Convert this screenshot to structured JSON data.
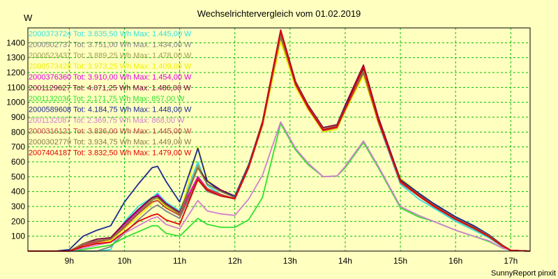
{
  "chart_data": {
    "type": "line",
    "title": "Wechselrichtervergleich vom 01.02.2019",
    "ylabel": "W",
    "xlabel": "",
    "footer": "SunnyReport pinxit",
    "x_ticks": [
      "9h",
      "10h",
      "11h",
      "12h",
      "13h",
      "14h",
      "15h",
      "16h",
      "17h"
    ],
    "y_ticks": [
      100,
      200,
      300,
      400,
      500,
      600,
      700,
      800,
      900,
      1000,
      1100,
      1200,
      1300,
      1400
    ],
    "xlim": [
      8.25,
      17.35
    ],
    "ylim": [
      0,
      1500
    ],
    "grid": true,
    "legend_position": "top-left",
    "x": [
      8.25,
      8.75,
      9.0,
      9.25,
      9.5,
      9.75,
      10.0,
      10.25,
      10.5,
      10.6,
      10.75,
      11.0,
      11.33,
      11.5,
      11.75,
      12.0,
      12.25,
      12.5,
      12.83,
      13.1,
      13.33,
      13.6,
      13.85,
      14.0,
      14.33,
      14.6,
      15.0,
      15.33,
      15.6,
      16.0,
      16.33,
      16.6,
      16.85,
      17.0,
      17.35
    ],
    "series": [
      {
        "name": "2000373724 Tot: 3.835,50 Wh Max: 1.445,00 W",
        "color": "#33e0e0",
        "values": [
          0,
          0,
          0,
          0,
          0,
          10,
          200,
          300,
          360,
          390,
          330,
          270,
          600,
          440,
          380,
          350,
          560,
          850,
          1445,
          1120,
          960,
          800,
          820,
          950,
          1190,
          860,
          450,
          350,
          290,
          200,
          140,
          90,
          30,
          5,
          0
        ]
      },
      {
        "name": "2000502737 Tot: 3.751,00 Wh Max: 1.434,00 W",
        "color": "#808080",
        "values": [
          0,
          0,
          0,
          0,
          0,
          30,
          120,
          210,
          290,
          310,
          270,
          220,
          480,
          400,
          370,
          350,
          560,
          850,
          1434,
          1110,
          950,
          810,
          830,
          950,
          1200,
          880,
          460,
          370,
          300,
          210,
          150,
          95,
          30,
          5,
          0
        ]
      },
      {
        "name": "2000523437 Tot: 3.889,25 Wh Max: 1.478,00 W",
        "color": "#a0a050",
        "values": [
          0,
          0,
          0,
          50,
          70,
          80,
          160,
          250,
          340,
          360,
          310,
          250,
          580,
          450,
          400,
          360,
          570,
          860,
          1478,
          1130,
          970,
          820,
          840,
          970,
          1230,
          890,
          470,
          380,
          310,
          215,
          155,
          100,
          35,
          5,
          0
        ]
      },
      {
        "name": "2000573428 Tot: 3.973,25 Wh Max: 1.409,00 W",
        "color": "#f0f000",
        "values": [
          0,
          0,
          0,
          40,
          60,
          70,
          150,
          230,
          320,
          350,
          300,
          240,
          700,
          480,
          400,
          360,
          560,
          840,
          1409,
          1100,
          950,
          800,
          820,
          940,
          1180,
          860,
          490,
          390,
          320,
          230,
          165,
          110,
          40,
          5,
          0
        ]
      },
      {
        "name": "2000376360 Tot: 3.910,00 Wh Max: 1.454,00 W",
        "color": "#e000e0",
        "values": [
          0,
          0,
          0,
          40,
          70,
          80,
          180,
          270,
          350,
          380,
          320,
          260,
          500,
          420,
          380,
          350,
          560,
          850,
          1454,
          1120,
          960,
          810,
          830,
          960,
          1210,
          870,
          460,
          380,
          310,
          220,
          160,
          105,
          35,
          5,
          0
        ]
      },
      {
        "name": "2001129627 Tot: 4.071,25 Wh Max: 1.486,00 W",
        "color": "#800040",
        "values": [
          0,
          0,
          0,
          50,
          80,
          90,
          190,
          280,
          360,
          370,
          320,
          260,
          560,
          470,
          410,
          370,
          580,
          870,
          1486,
          1140,
          980,
          830,
          850,
          980,
          1250,
          900,
          480,
          390,
          320,
          230,
          170,
          110,
          40,
          5,
          0
        ]
      },
      {
        "name": "2001132036 Tot: 2.171,75 Wh Max: 857,00 W",
        "color": "#30e030",
        "values": [
          0,
          0,
          0,
          10,
          25,
          40,
          90,
          130,
          170,
          170,
          120,
          100,
          220,
          180,
          160,
          160,
          210,
          360,
          857,
          680,
          580,
          500,
          505,
          560,
          730,
          560,
          290,
          230,
          200,
          140,
          100,
          65,
          20,
          5,
          0
        ]
      },
      {
        "name": "2000589608 Tot: 4.184,75 Wh Max: 1.448,00 W",
        "color": "#1a2a90",
        "values": [
          0,
          0,
          10,
          100,
          140,
          170,
          330,
          450,
          560,
          570,
          470,
          330,
          690,
          470,
          400,
          370,
          580,
          860,
          1448,
          1130,
          970,
          820,
          840,
          970,
          1220,
          880,
          480,
          390,
          320,
          230,
          170,
          110,
          40,
          5,
          0
        ]
      },
      {
        "name": "2001132087 Tot: 2.369,75 Wh Max: 868,00 W",
        "color": "#d080d0",
        "values": [
          0,
          0,
          0,
          20,
          40,
          60,
          120,
          170,
          220,
          230,
          180,
          150,
          340,
          270,
          250,
          240,
          350,
          510,
          868,
          690,
          590,
          500,
          505,
          570,
          740,
          570,
          300,
          240,
          200,
          140,
          100,
          70,
          20,
          5,
          0
        ]
      },
      {
        "name": "2000316121 Tot: 3.836,00 Wh Max: 1.445,00 W",
        "color": "#c04040",
        "values": [
          0,
          0,
          0,
          40,
          60,
          80,
          160,
          250,
          330,
          340,
          290,
          240,
          490,
          420,
          380,
          350,
          560,
          850,
          1445,
          1120,
          960,
          810,
          830,
          950,
          1200,
          870,
          460,
          370,
          300,
          215,
          155,
          100,
          35,
          5,
          0
        ]
      },
      {
        "name": "2000302779 Tot: 3.934,75 Wh Max: 1.449,00 W",
        "color": "#8a7a40",
        "values": [
          0,
          0,
          0,
          50,
          70,
          80,
          170,
          260,
          350,
          360,
          310,
          250,
          560,
          450,
          400,
          360,
          570,
          860,
          1449,
          1130,
          970,
          820,
          840,
          960,
          1210,
          880,
          470,
          380,
          310,
          220,
          160,
          105,
          38,
          5,
          0
        ]
      },
      {
        "name": "2007404187 Tot: 3.832,50 Wh Max: 1.479,00 W",
        "color": "#e00000",
        "values": [
          0,
          0,
          0,
          30,
          50,
          60,
          130,
          200,
          240,
          250,
          210,
          180,
          480,
          410,
          370,
          355,
          565,
          855,
          1479,
          1125,
          965,
          815,
          835,
          955,
          1240,
          880,
          470,
          375,
          305,
          215,
          155,
          100,
          35,
          5,
          0
        ]
      }
    ]
  }
}
